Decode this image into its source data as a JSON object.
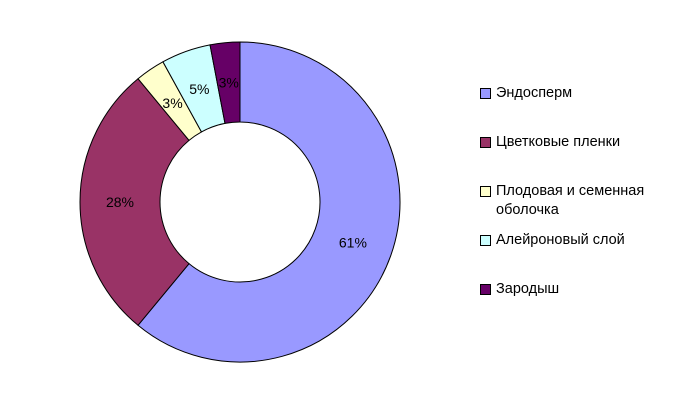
{
  "chart_data": {
    "type": "donut",
    "title": "",
    "series": [
      {
        "values": [
          61,
          28,
          3,
          5,
          3
        ],
        "labels": [
          "61%",
          "28%",
          "3%",
          "5%",
          "3%"
        ]
      }
    ],
    "categories": [
      "Эндосперм",
      "Цветковые пленки",
      "Плодовая и семенная оболочка",
      "Алейроновый слой",
      "Зародыш"
    ],
    "colors": [
      "#9999ff",
      "#993366",
      "#ffffcc",
      "#ccffff",
      "#660066"
    ],
    "legend_position": "right"
  }
}
